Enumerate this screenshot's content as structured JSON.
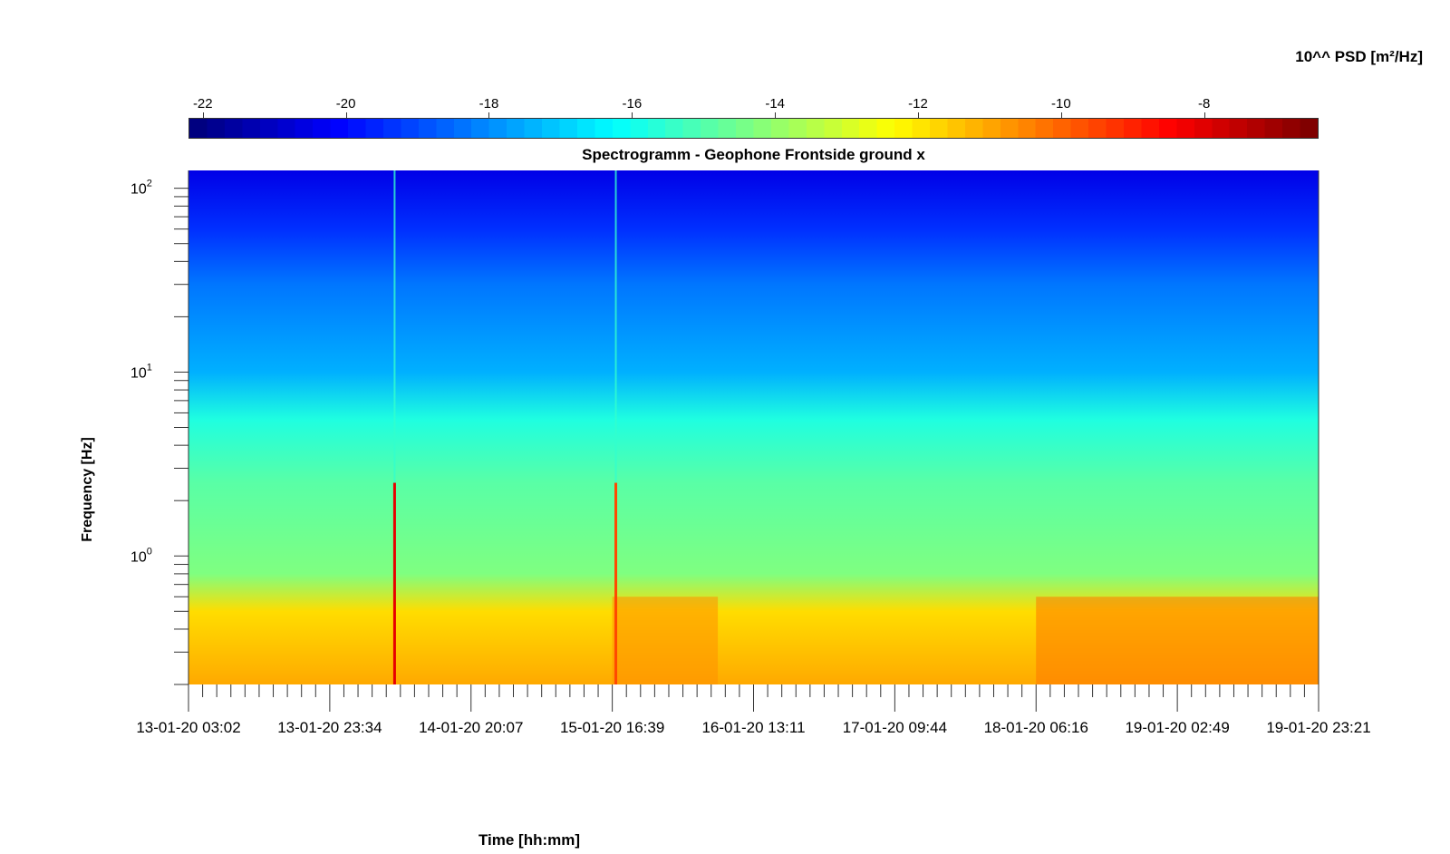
{
  "colorbar": {
    "label": "10^^ PSD [m²/Hz]",
    "ticks": [
      "-22",
      "-20",
      "-18",
      "-16",
      "-14",
      "-12",
      "-10",
      "-8"
    ],
    "tick_values": [
      -22,
      -20,
      -18,
      -16,
      -14,
      -12,
      -10,
      -8
    ],
    "range": [
      -22.2,
      -6.4
    ],
    "colormap": "jet"
  },
  "chart_data": {
    "type": "heatmap",
    "title": "Spectrogramm - Geophone Frontside ground x",
    "xlabel": "Time [hh:mm]",
    "ylabel": "Frequency [Hz]",
    "yscale": "log",
    "ylim": [
      0.2,
      125
    ],
    "yticks": [
      {
        "value": 1,
        "base": "10",
        "exp": "0"
      },
      {
        "value": 10,
        "base": "10",
        "exp": "1"
      },
      {
        "value": 100,
        "base": "10",
        "exp": "2"
      }
    ],
    "xticks": [
      "13-01-20 03:02",
      "13-01-20 23:34",
      "14-01-20 20:07",
      "15-01-20 16:39",
      "16-01-20 13:11",
      "17-01-20 09:44",
      "18-01-20 06:16",
      "19-01-20 02:49",
      "19-01-20 23:21"
    ],
    "minor_ticks_between": 9,
    "psd_profile_log10": [
      {
        "freq_hz": 0.2,
        "value": -11.0
      },
      {
        "freq_hz": 0.5,
        "value": -11.8
      },
      {
        "freq_hz": 0.8,
        "value": -14.3
      },
      {
        "freq_hz": 2.5,
        "value": -14.9
      },
      {
        "freq_hz": 5.5,
        "value": -15.8
      },
      {
        "freq_hz": 10,
        "value": -17.5
      },
      {
        "freq_hz": 30,
        "value": -18.4
      },
      {
        "freq_hz": 60,
        "value": -19.5
      },
      {
        "freq_hz": 125,
        "value": -20.6
      }
    ],
    "events": [
      {
        "time": "14-01-20 ~09:00",
        "type": "broadband vertical line",
        "peak_log10_psd": -8
      },
      {
        "time": "15-01-20 ~17:10",
        "type": "broadband vertical line",
        "peak_log10_psd": -9.5
      }
    ],
    "low_freq_enhanced_periods": [
      {
        "from": "15-01-20 16:39",
        "to": "16-01-20 08:00",
        "value": -10.6
      },
      {
        "from": "18-01-20 06:16",
        "to": "19-01-20 23:21",
        "value": -10.2
      }
    ],
    "grid": false,
    "legend": "colorbar top"
  }
}
